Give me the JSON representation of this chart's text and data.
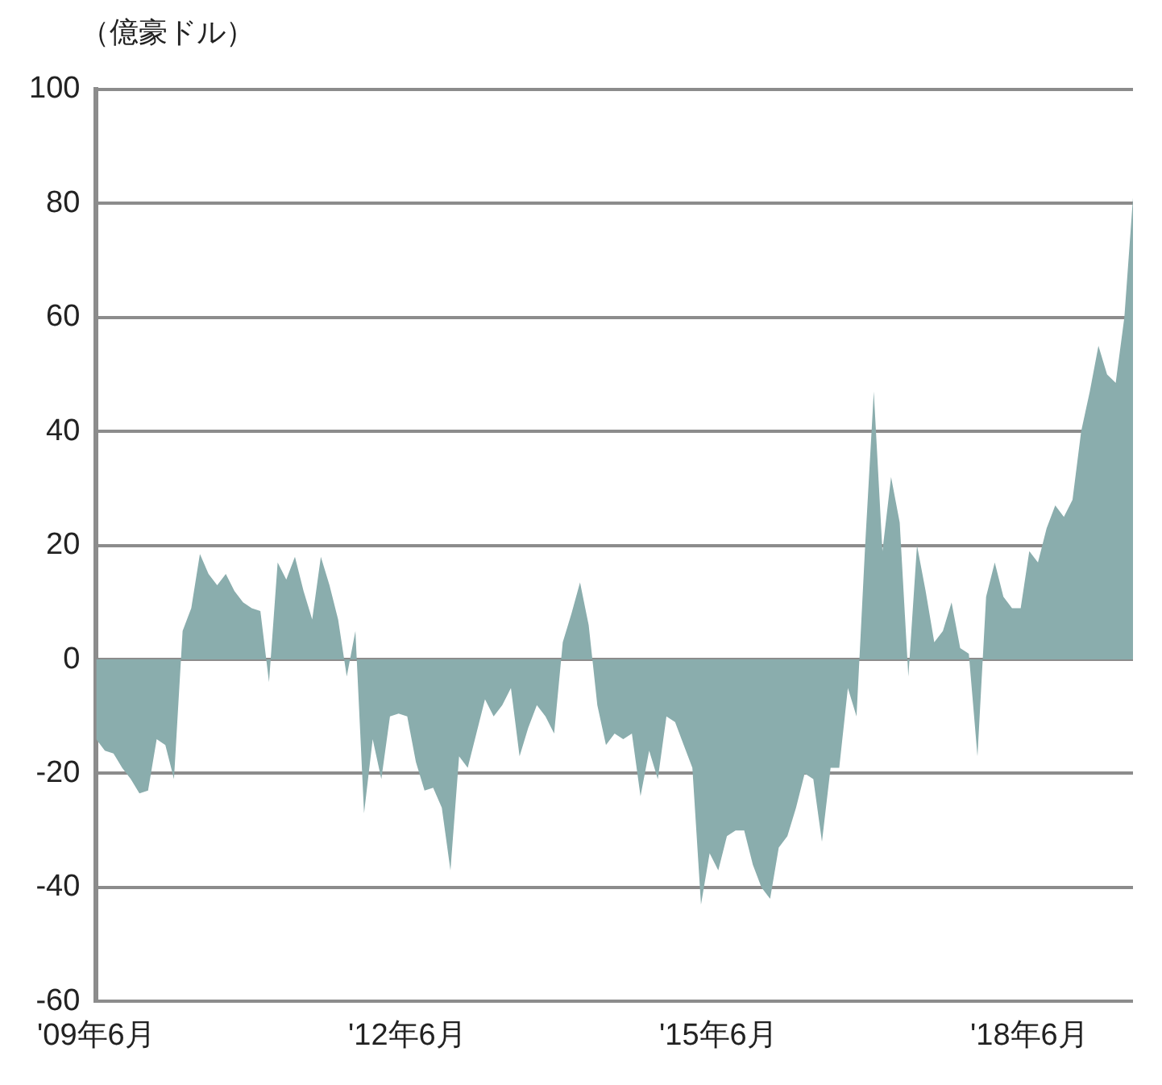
{
  "chart_data": {
    "type": "area",
    "ylabel": "（億豪ドル）",
    "categories": [
      "'09年6月",
      null,
      null,
      null,
      null,
      null,
      null,
      null,
      null,
      null,
      null,
      null,
      null,
      null,
      null,
      null,
      null,
      null,
      null,
      null,
      null,
      null,
      null,
      null,
      null,
      null,
      null,
      null,
      null,
      null,
      null,
      null,
      null,
      null,
      null,
      null,
      "'12年6月",
      null,
      null,
      null,
      null,
      null,
      null,
      null,
      null,
      null,
      null,
      null,
      null,
      null,
      null,
      null,
      null,
      null,
      null,
      null,
      null,
      null,
      null,
      null,
      null,
      null,
      null,
      null,
      null,
      null,
      null,
      null,
      null,
      null,
      null,
      null,
      "'15年6月",
      null,
      null,
      null,
      null,
      null,
      null,
      null,
      null,
      null,
      null,
      null,
      null,
      null,
      null,
      null,
      null,
      null,
      null,
      null,
      null,
      null,
      null,
      null,
      null,
      null,
      null,
      null,
      null,
      null,
      null,
      null,
      null,
      null,
      null,
      null,
      "'18年6月",
      null,
      null,
      null,
      null,
      null,
      null,
      null,
      null,
      null,
      null,
      null,
      null
    ],
    "series": [
      {
        "color": "#8aadad",
        "values": [
          -14,
          -16,
          -16.5,
          -19,
          -21,
          -23.5,
          -23,
          -14,
          -15,
          -21,
          5,
          9,
          18.5,
          15,
          13,
          15,
          12,
          10,
          9,
          8.5,
          -4,
          17,
          14,
          18,
          12,
          7,
          18,
          13,
          7,
          -3,
          5,
          -27,
          -14,
          -21,
          -10,
          -9.5,
          -10,
          -18,
          -23,
          -22.5,
          -26,
          -37,
          -17,
          -19,
          -13,
          -7,
          -10,
          -8,
          -5,
          -17,
          -12,
          -8,
          -10,
          -13,
          3,
          8,
          13.5,
          6,
          -8,
          -15,
          -13,
          -14,
          -13,
          -24,
          -16,
          -21,
          -10,
          -11,
          -15,
          -19,
          -43,
          -34,
          -37,
          -31,
          -30,
          -30,
          -36,
          -40,
          -42,
          -33,
          -31,
          -26,
          -20,
          -21,
          -32,
          -19,
          -19,
          -5,
          -10,
          20,
          47,
          19,
          32,
          24,
          -3,
          20,
          12,
          3,
          5,
          10,
          2,
          1,
          -17,
          11,
          17,
          11,
          9,
          9,
          19,
          17,
          23,
          27,
          25,
          28,
          40,
          47,
          55,
          50,
          48.5,
          60,
          81
        ]
      }
    ],
    "ylim": [
      -60,
      100
    ],
    "yticks": [
      -60,
      -40,
      -20,
      0,
      20,
      40,
      60,
      80,
      100
    ],
    "grid": "y",
    "legend": false
  }
}
